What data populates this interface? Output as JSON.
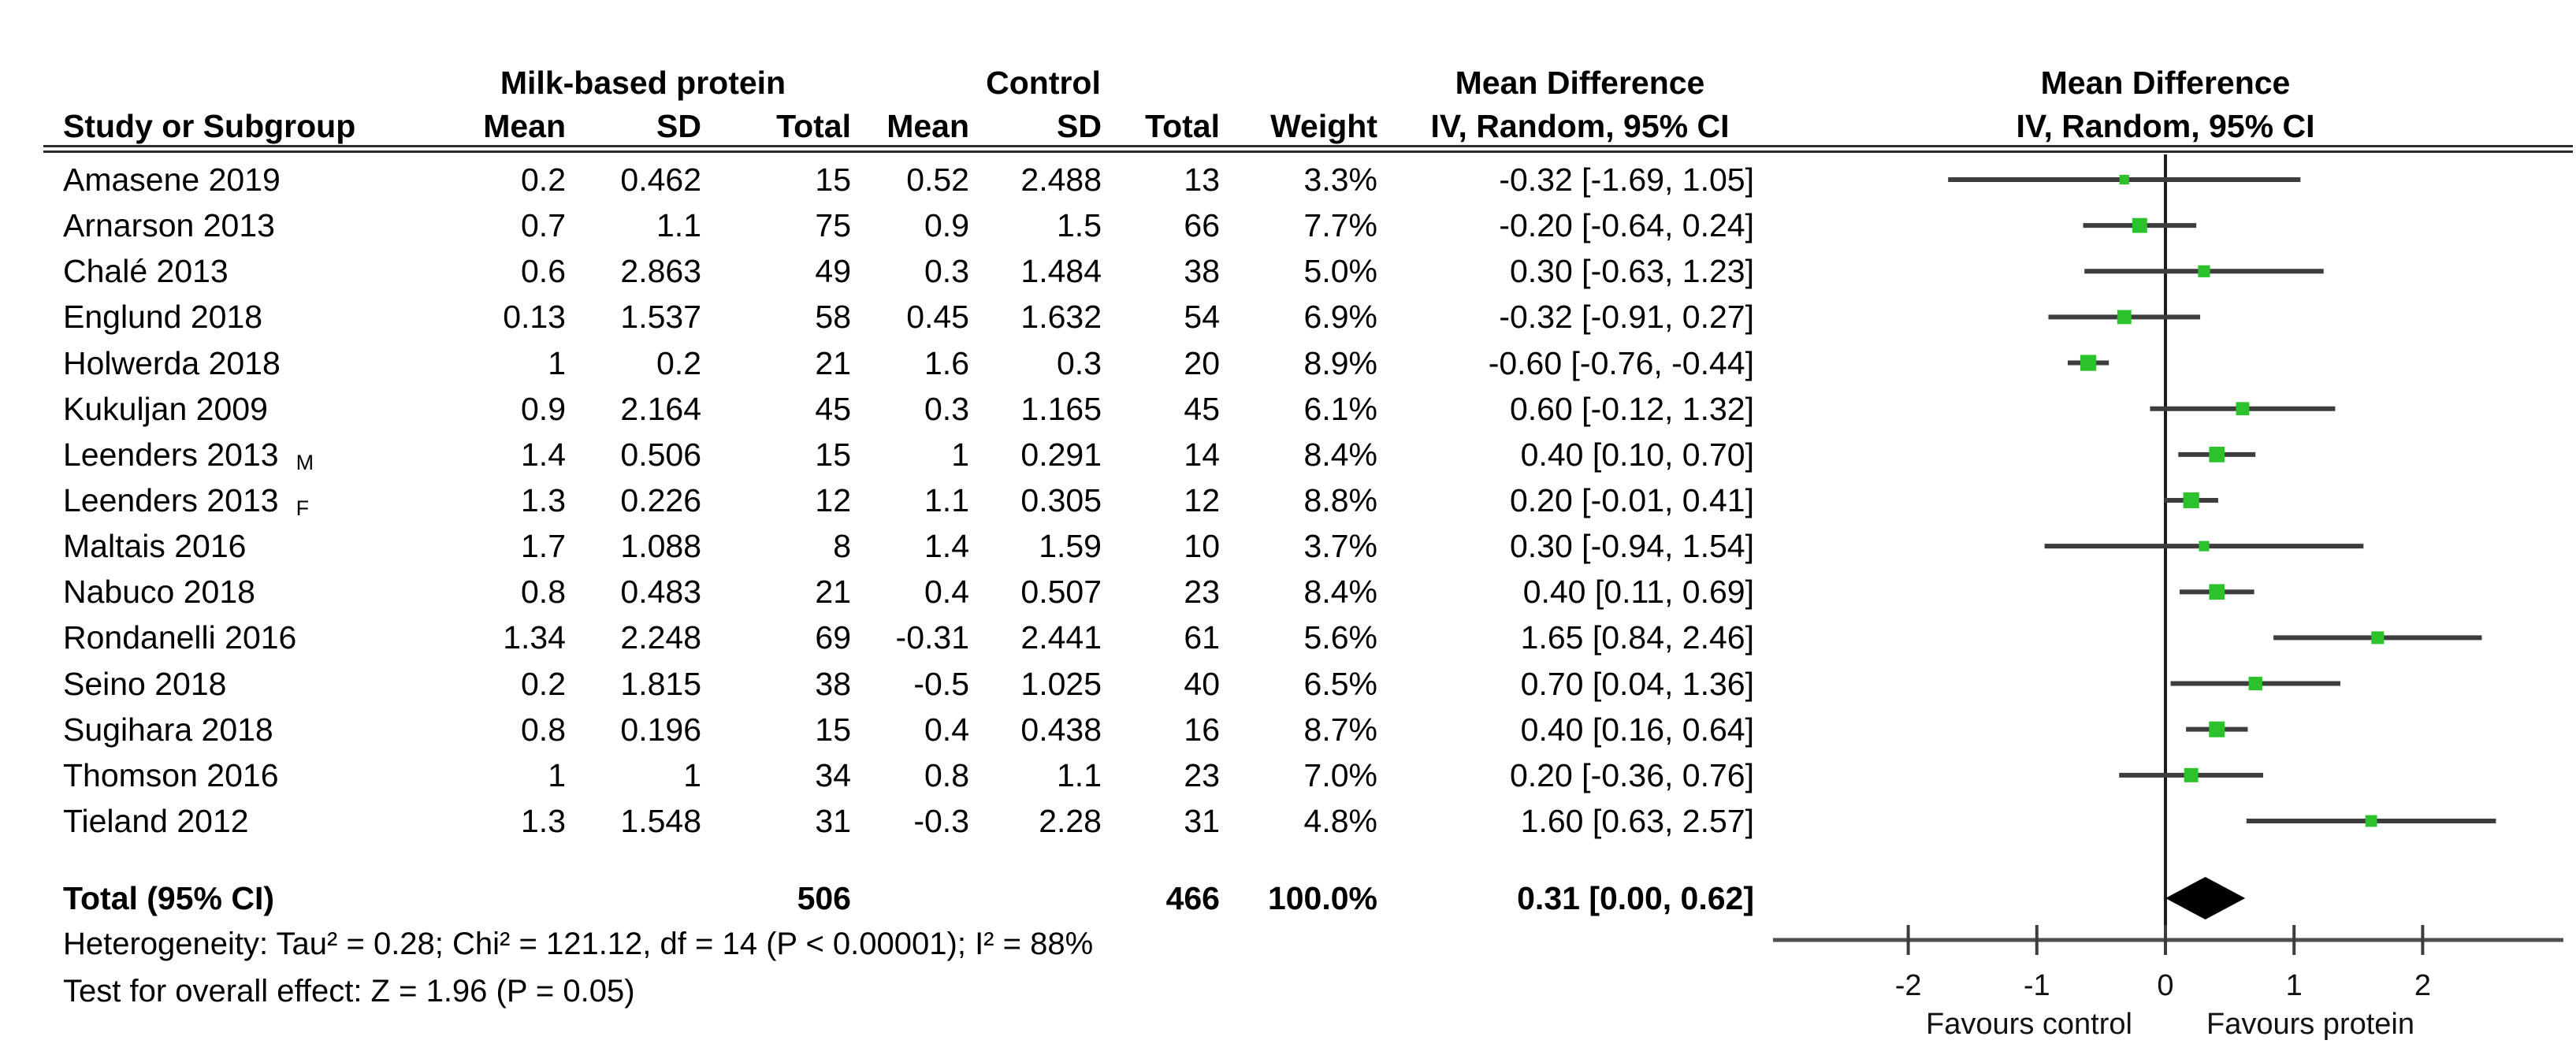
{
  "figure": {
    "header": {
      "study_col": "Study or Subgroup",
      "group1": "Milk-based protein",
      "group2": "Control",
      "sub_cols": [
        "Mean",
        "SD",
        "Total",
        "Mean",
        "SD",
        "Total",
        "Weight"
      ],
      "md_text_col_line1": "Mean Difference",
      "md_text_col_line2": "IV, Random, 95% CI",
      "md_plot_col_line1": "Mean Difference",
      "md_plot_col_line2": "IV, Random, 95% CI"
    },
    "rows": [
      {
        "study": "Amasene 2019",
        "suffix": "",
        "mean1": "0.2",
        "sd1": "0.462",
        "total1": "15",
        "mean2": "0.52",
        "sd2": "2.488",
        "total2": "13",
        "weight": "3.3%",
        "ci": "-0.32 [-1.69, 1.05]"
      },
      {
        "study": "Arnarson 2013",
        "suffix": "",
        "mean1": "0.7",
        "sd1": "1.1",
        "total1": "75",
        "mean2": "0.9",
        "sd2": "1.5",
        "total2": "66",
        "weight": "7.7%",
        "ci": "-0.20 [-0.64, 0.24]"
      },
      {
        "study": "Chalé 2013",
        "suffix": "",
        "mean1": "0.6",
        "sd1": "2.863",
        "total1": "49",
        "mean2": "0.3",
        "sd2": "1.484",
        "total2": "38",
        "weight": "5.0%",
        "ci": "0.30 [-0.63, 1.23]"
      },
      {
        "study": "Englund 2018",
        "suffix": "",
        "mean1": "0.13",
        "sd1": "1.537",
        "total1": "58",
        "mean2": "0.45",
        "sd2": "1.632",
        "total2": "54",
        "weight": "6.9%",
        "ci": "-0.32 [-0.91, 0.27]"
      },
      {
        "study": "Holwerda 2018",
        "suffix": "",
        "mean1": "1",
        "sd1": "0.2",
        "total1": "21",
        "mean2": "1.6",
        "sd2": "0.3",
        "total2": "20",
        "weight": "8.9%",
        "ci": "-0.60 [-0.76, -0.44]"
      },
      {
        "study": "Kukuljan 2009",
        "suffix": "",
        "mean1": "0.9",
        "sd1": "2.164",
        "total1": "45",
        "mean2": "0.3",
        "sd2": "1.165",
        "total2": "45",
        "weight": "6.1%",
        "ci": "0.60 [-0.12, 1.32]"
      },
      {
        "study": "Leenders 2013",
        "suffix": "M",
        "mean1": "1.4",
        "sd1": "0.506",
        "total1": "15",
        "mean2": "1",
        "sd2": "0.291",
        "total2": "14",
        "weight": "8.4%",
        "ci": "0.40 [0.10, 0.70]"
      },
      {
        "study": "Leenders 2013",
        "suffix": "F",
        "mean1": "1.3",
        "sd1": "0.226",
        "total1": "12",
        "mean2": "1.1",
        "sd2": "0.305",
        "total2": "12",
        "weight": "8.8%",
        "ci": "0.20 [-0.01, 0.41]"
      },
      {
        "study": "Maltais 2016",
        "suffix": "",
        "mean1": "1.7",
        "sd1": "1.088",
        "total1": "8",
        "mean2": "1.4",
        "sd2": "1.59",
        "total2": "10",
        "weight": "3.7%",
        "ci": "0.30 [-0.94, 1.54]"
      },
      {
        "study": "Nabuco 2018",
        "suffix": "",
        "mean1": "0.8",
        "sd1": "0.483",
        "total1": "21",
        "mean2": "0.4",
        "sd2": "0.507",
        "total2": "23",
        "weight": "8.4%",
        "ci": "0.40 [0.11, 0.69]"
      },
      {
        "study": "Rondanelli 2016",
        "suffix": "",
        "mean1": "1.34",
        "sd1": "2.248",
        "total1": "69",
        "mean2": "-0.31",
        "sd2": "2.441",
        "total2": "61",
        "weight": "5.6%",
        "ci": "1.65 [0.84, 2.46]"
      },
      {
        "study": "Seino 2018",
        "suffix": "",
        "mean1": "0.2",
        "sd1": "1.815",
        "total1": "38",
        "mean2": "-0.5",
        "sd2": "1.025",
        "total2": "40",
        "weight": "6.5%",
        "ci": "0.70 [0.04, 1.36]"
      },
      {
        "study": "Sugihara 2018",
        "suffix": "",
        "mean1": "0.8",
        "sd1": "0.196",
        "total1": "15",
        "mean2": "0.4",
        "sd2": "0.438",
        "total2": "16",
        "weight": "8.7%",
        "ci": "0.40 [0.16, 0.64]"
      },
      {
        "study": "Thomson 2016",
        "suffix": "",
        "mean1": "1",
        "sd1": "1",
        "total1": "34",
        "mean2": "0.8",
        "sd2": "1.1",
        "total2": "23",
        "weight": "7.0%",
        "ci": "0.20 [-0.36, 0.76]"
      },
      {
        "study": "Tieland 2012",
        "suffix": "",
        "mean1": "1.3",
        "sd1": "1.548",
        "total1": "31",
        "mean2": "-0.3",
        "sd2": "2.28",
        "total2": "31",
        "weight": "4.8%",
        "ci": "1.60 [0.63, 2.57]"
      }
    ],
    "total_row": {
      "label": "Total (95% CI)",
      "total1": "506",
      "total2": "466",
      "weight": "100.0%",
      "ci": "0.31 [0.00, 0.62]"
    },
    "footnotes": {
      "heterogeneity": "Heterogeneity: Tau² = 0.28; Chi² = 121.12, df = 14 (P < 0.00001); I² = 88%",
      "overall_effect": "Test for overall effect: Z = 1.96 (P = 0.05)"
    }
  },
  "chart_data": {
    "type": "scatter",
    "subtype": "forest-plot",
    "title": "Mean Difference IV, Random, 95% CI",
    "xlabel_left": "Favours control",
    "xlabel_right": "Favours protein",
    "xlim": [
      -3.05,
      3.1
    ],
    "x_ticks": [
      -2,
      -1,
      0,
      1,
      2
    ],
    "zero_line": 0,
    "grid": false,
    "marker_color": "#2BC22B",
    "ci_line_color": "#3d3d3d",
    "diamond_color": "#000000",
    "series": [
      {
        "label": "Amasene 2019",
        "md": -0.32,
        "lo": -1.69,
        "hi": 1.05,
        "weight_pct": 3.3
      },
      {
        "label": "Arnarson 2013",
        "md": -0.2,
        "lo": -0.64,
        "hi": 0.24,
        "weight_pct": 7.7
      },
      {
        "label": "Chalé 2013",
        "md": 0.3,
        "lo": -0.63,
        "hi": 1.23,
        "weight_pct": 5.0
      },
      {
        "label": "Englund 2018",
        "md": -0.32,
        "lo": -0.91,
        "hi": 0.27,
        "weight_pct": 6.9
      },
      {
        "label": "Holwerda 2018",
        "md": -0.6,
        "lo": -0.76,
        "hi": -0.44,
        "weight_pct": 8.9
      },
      {
        "label": "Kukuljan 2009",
        "md": 0.6,
        "lo": -0.12,
        "hi": 1.32,
        "weight_pct": 6.1
      },
      {
        "label": "Leenders 2013 M",
        "md": 0.4,
        "lo": 0.1,
        "hi": 0.7,
        "weight_pct": 8.4
      },
      {
        "label": "Leenders 2013 F",
        "md": 0.2,
        "lo": -0.01,
        "hi": 0.41,
        "weight_pct": 8.8
      },
      {
        "label": "Maltais 2016",
        "md": 0.3,
        "lo": -0.94,
        "hi": 1.54,
        "weight_pct": 3.7
      },
      {
        "label": "Nabuco 2018",
        "md": 0.4,
        "lo": 0.11,
        "hi": 0.69,
        "weight_pct": 8.4
      },
      {
        "label": "Rondanelli 2016",
        "md": 1.65,
        "lo": 0.84,
        "hi": 2.46,
        "weight_pct": 5.6
      },
      {
        "label": "Seino 2018",
        "md": 0.7,
        "lo": 0.04,
        "hi": 1.36,
        "weight_pct": 6.5
      },
      {
        "label": "Sugihara 2018",
        "md": 0.4,
        "lo": 0.16,
        "hi": 0.64,
        "weight_pct": 8.7
      },
      {
        "label": "Thomson 2016",
        "md": 0.2,
        "lo": -0.36,
        "hi": 0.76,
        "weight_pct": 7.0
      },
      {
        "label": "Tieland 2012",
        "md": 1.6,
        "lo": 0.63,
        "hi": 2.57,
        "weight_pct": 4.8
      }
    ],
    "total": {
      "label": "Total (95% CI)",
      "md": 0.31,
      "lo": 0.0,
      "hi": 0.62
    }
  }
}
